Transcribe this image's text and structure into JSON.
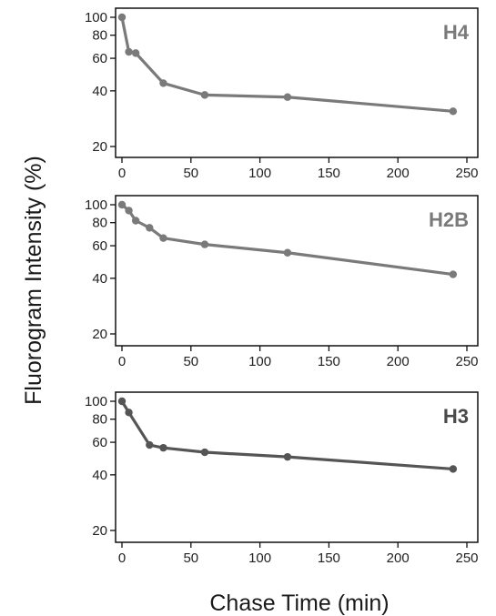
{
  "chart_data": [
    {
      "type": "line",
      "label": "H4",
      "yscale": "log",
      "x": [
        0,
        5,
        10,
        30,
        60,
        120,
        240
      ],
      "y": [
        100,
        65,
        64,
        44,
        38,
        37,
        31
      ],
      "xlim": [
        0,
        250
      ],
      "ylim": [
        20,
        100
      ],
      "xticks": [
        "0",
        "50",
        "100",
        "150",
        "200",
        "250"
      ],
      "yticks": [
        "100",
        "80",
        "60",
        "40",
        "20"
      ],
      "line_color": "#7a7a7a",
      "label_color": "#7a7a7a"
    },
    {
      "type": "line",
      "label": "H2B",
      "yscale": "log",
      "x": [
        0,
        5,
        10,
        20,
        30,
        60,
        120,
        240
      ],
      "y": [
        100,
        93,
        82,
        75,
        66,
        61,
        55,
        42
      ],
      "xlim": [
        0,
        250
      ],
      "ylim": [
        20,
        100
      ],
      "xticks": [
        "0",
        "50",
        "100",
        "150",
        "200",
        "250"
      ],
      "yticks": [
        "100",
        "80",
        "60",
        "40",
        "20"
      ],
      "line_color": "#7a7a7a",
      "label_color": "#7a7a7a"
    },
    {
      "type": "line",
      "label": "H3",
      "yscale": "log",
      "x": [
        0,
        5,
        20,
        30,
        60,
        120,
        240
      ],
      "y": [
        100,
        87,
        58,
        56,
        53,
        50,
        43
      ],
      "xlim": [
        0,
        250
      ],
      "ylim": [
        20,
        100
      ],
      "xticks": [
        "0",
        "50",
        "100",
        "150",
        "200",
        "250"
      ],
      "yticks": [
        "100",
        "80",
        "60",
        "40",
        "20"
      ],
      "line_color": "#555555",
      "label_color": "#4a4a4a"
    }
  ],
  "ylabel": "Fluorogram Intensity (%)",
  "xlabel": "Chase Time (min)"
}
